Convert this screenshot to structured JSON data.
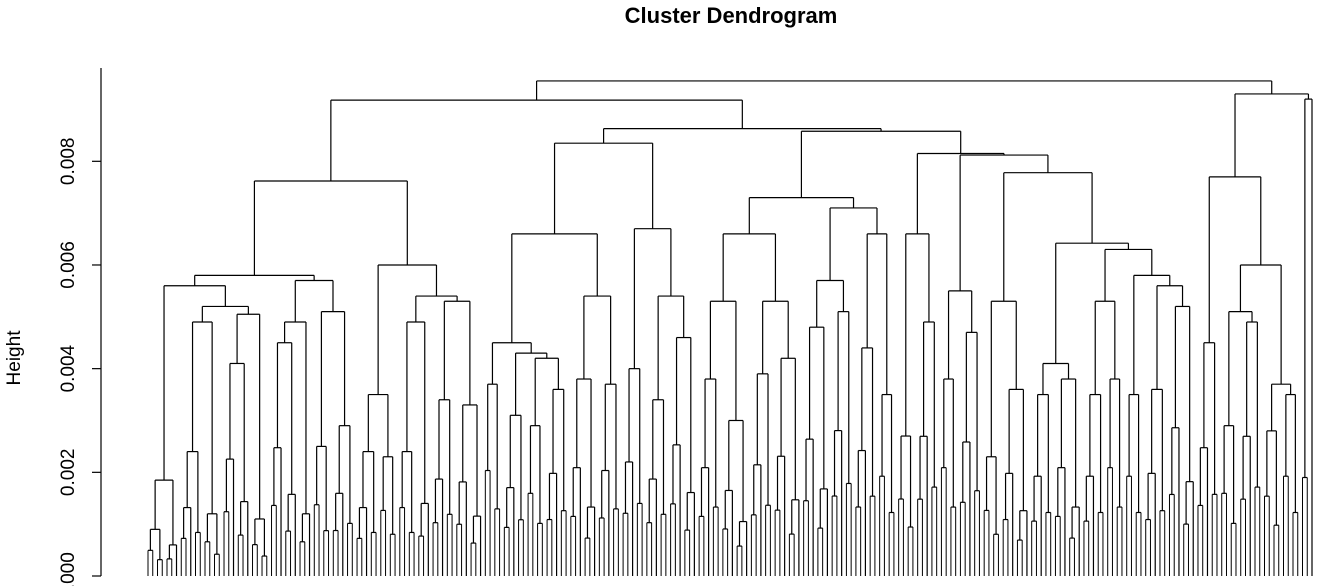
{
  "chart_data": {
    "type": "dendrogram",
    "title": "Cluster Dendrogram",
    "xlabel": "",
    "ylabel": "Height",
    "ylim": [
      0,
      0.0098
    ],
    "y_ticks": [
      0.0,
      0.002,
      0.004,
      0.006,
      0.008
    ],
    "y_tick_labels": [
      "0.000",
      "0.002",
      "0.004",
      "0.006",
      "0.008"
    ],
    "tree": {
      "h": 0.00955,
      "c": [
        {
          "h": 0.00918,
          "c": [
            {
              "h": 0.00762,
              "c": [
                {
                  "h": 0.0058,
                  "c": [
                    {
                      "h": 0.0056,
                      "c": [
                        {
                          "h": 0.00185,
                          "c": [
                            {
                              "h": 0.0009,
                              "n": 4
                            },
                            {
                              "h": 0.0006,
                              "n": 3
                            }
                          ]
                        },
                        {
                          "h": 0.0052,
                          "c": [
                            {
                              "h": 0.0049,
                              "c": [
                                {
                                  "h": 0.0024,
                                  "n": 5
                                },
                                {
                                  "h": 0.0012,
                                  "n": 4
                                }
                              ]
                            },
                            {
                              "h": 0.00505,
                              "c": [
                                {
                                  "h": 0.0041,
                                  "n": 6
                                },
                                {
                                  "h": 0.0011,
                                  "n": 4
                                }
                              ]
                            }
                          ]
                        }
                      ]
                    },
                    {
                      "h": 0.0057,
                      "c": [
                        {
                          "h": 0.0049,
                          "c": [
                            {
                              "h": 0.0045,
                              "n": 6
                            },
                            {
                              "h": 0.0012,
                              "n": 3
                            }
                          ]
                        },
                        {
                          "h": 0.0051,
                          "c": [
                            {
                              "h": 0.0025,
                              "n": 4
                            },
                            {
                              "h": 0.0029,
                              "n": 5
                            }
                          ]
                        }
                      ]
                    }
                  ]
                },
                {
                  "h": 0.006,
                  "c": [
                    {
                      "h": 0.0035,
                      "c": [
                        {
                          "h": 0.0024,
                          "n": 5
                        },
                        {
                          "h": 0.0023,
                          "n": 4
                        }
                      ]
                    },
                    {
                      "h": 0.0054,
                      "c": [
                        {
                          "h": 0.0049,
                          "c": [
                            {
                              "h": 0.0024,
                              "n": 4
                            },
                            {
                              "h": 0.0014,
                              "n": 3
                            }
                          ]
                        },
                        {
                          "h": 0.0053,
                          "c": [
                            {
                              "h": 0.0034,
                              "n": 5
                            },
                            {
                              "h": 0.0033,
                              "n": 6
                            }
                          ]
                        }
                      ]
                    }
                  ]
                }
              ]
            },
            {
              "h": 0.00863,
              "c": [
                {
                  "h": 0.00835,
                  "c": [
                    {
                      "h": 0.0066,
                      "c": [
                        {
                          "h": 0.0045,
                          "c": [
                            {
                              "h": 0.0037,
                              "n": 4
                            },
                            {
                              "h": 0.0043,
                              "c": [
                                {
                                  "h": 0.0031,
                                  "n": 5
                                },
                                {
                                  "h": 0.0042,
                                  "c": [
                                    {
                                      "h": 0.0029,
                                      "n": 4
                                    },
                                    {
                                      "h": 0.0036,
                                      "n": 5
                                    }
                                  ]
                                }
                              ]
                            }
                          ]
                        },
                        {
                          "h": 0.0054,
                          "c": [
                            {
                              "h": 0.0038,
                              "n": 6
                            },
                            {
                              "h": 0.0037,
                              "n": 5
                            }
                          ]
                        }
                      ]
                    },
                    {
                      "h": 0.0067,
                      "c": [
                        {
                          "h": 0.004,
                          "n": 5
                        },
                        {
                          "h": 0.0054,
                          "c": [
                            {
                              "h": 0.0034,
                              "n": 5
                            },
                            {
                              "h": 0.0046,
                              "n": 6
                            }
                          ]
                        }
                      ]
                    }
                  ]
                },
                {
                  "h": 0.00858,
                  "c": [
                    {
                      "h": 0.0073,
                      "c": [
                        {
                          "h": 0.0066,
                          "c": [
                            {
                              "h": 0.0053,
                              "c": [
                                {
                                  "h": 0.0038,
                                  "n": 5
                                },
                                {
                                  "h": 0.003,
                                  "n": 6
                                }
                              ]
                            },
                            {
                              "h": 0.0053,
                              "c": [
                                {
                                  "h": 0.0039,
                                  "n": 5
                                },
                                {
                                  "h": 0.0042,
                                  "n": 6
                                }
                              ]
                            }
                          ]
                        },
                        {
                          "h": 0.0071,
                          "c": [
                            {
                              "h": 0.0057,
                              "c": [
                                {
                                  "h": 0.0048,
                                  "n": 6
                                },
                                {
                                  "h": 0.0051,
                                  "n": 5
                                }
                              ]
                            },
                            {
                              "h": 0.0066,
                              "c": [
                                {
                                  "h": 0.0044,
                                  "n": 5
                                },
                                {
                                  "h": 0.0035,
                                  "n": 4
                                }
                              ]
                            }
                          ]
                        }
                      ]
                    },
                    {
                      "h": 0.00815,
                      "c": [
                        {
                          "h": 0.0066,
                          "c": [
                            {
                              "h": 0.0027,
                              "n": 4
                            },
                            {
                              "h": 0.0049,
                              "n": 5
                            }
                          ]
                        },
                        {
                          "h": 0.00812,
                          "c": [
                            {
                              "h": 0.0055,
                              "c": [
                                {
                                  "h": 0.0038,
                                  "n": 4
                                },
                                {
                                  "h": 0.0047,
                                  "n": 5
                                }
                              ]
                            },
                            {
                              "h": 0.00778,
                              "c": [
                                {
                                  "h": 0.0053,
                                  "c": [
                                    {
                                      "h": 0.0023,
                                      "n": 4
                                    },
                                    {
                                      "h": 0.0036,
                                      "n": 6
                                    }
                                  ]
                                },
                                {
                                  "h": 0.00642,
                                  "c": [
                                    {
                                      "h": 0.0041,
                                      "c": [
                                        {
                                          "h": 0.0035,
                                          "n": 5
                                        },
                                        {
                                          "h": 0.0038,
                                          "n": 6
                                        }
                                      ]
                                    },
                                    {
                                      "h": 0.0063,
                                      "c": [
                                        {
                                          "h": 0.0053,
                                          "c": [
                                            {
                                              "h": 0.0035,
                                              "n": 5
                                            },
                                            {
                                              "h": 0.0038,
                                              "n": 4
                                            }
                                          ]
                                        },
                                        {
                                          "h": 0.0058,
                                          "c": [
                                            {
                                              "h": 0.0035,
                                              "n": 4
                                            },
                                            {
                                              "h": 0.0056,
                                              "c": [
                                                {
                                                  "h": 0.0036,
                                                  "n": 5
                                                },
                                                {
                                                  "h": 0.0052,
                                                  "n": 6
                                                }
                                              ]
                                            }
                                          ]
                                        }
                                      ]
                                    }
                                  ]
                                }
                              ]
                            }
                          ]
                        }
                      ]
                    }
                  ]
                }
              ]
            }
          ]
        },
        {
          "h": 0.0093,
          "c": [
            {
              "h": 0.0077,
              "c": [
                {
                  "h": 0.0045,
                  "n": 5
                },
                {
                  "h": 0.006,
                  "c": [
                    {
                      "h": 0.0051,
                      "c": [
                        {
                          "h": 0.0029,
                          "n": 4
                        },
                        {
                          "h": 0.0049,
                          "n": 5
                        }
                      ]
                    },
                    {
                      "h": 0.0037,
                      "c": [
                        {
                          "h": 0.0028,
                          "n": 4
                        },
                        {
                          "h": 0.0035,
                          "n": 4
                        }
                      ]
                    }
                  ]
                }
              ]
            },
            {
              "h": 0.0092,
              "c": [
                {
                  "h": 0.0019,
                  "n": 2
                },
                {
                  "h": 0.0005,
                  "n": 1
                }
              ]
            }
          ]
        }
      ]
    }
  }
}
